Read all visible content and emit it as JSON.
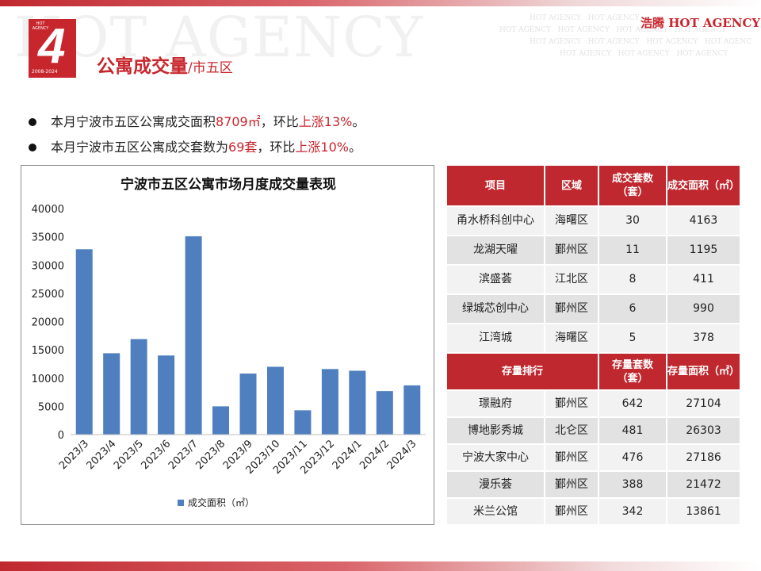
{
  "header": {
    "watermark": "HOT AGENCY",
    "watermark_row": "HOT AGENCY",
    "brand": "浩腾 HOT AGENCY",
    "logo_top": "HOT AGENCY",
    "logo_number": "4",
    "logo_years": "2008-2024"
  },
  "title": {
    "main": "公寓成交量",
    "sub": "/市五区"
  },
  "bullets": [
    {
      "pre": "本月宁波市五区公寓成交面积",
      "v1": "8709㎡",
      "mid": "，环比",
      "v2": "上涨13%",
      "post": "。"
    },
    {
      "pre": "本月宁波市五区公寓成交套数为",
      "v1": "69套",
      "mid": "，环比",
      "v2": "上涨10%",
      "post": "。"
    }
  ],
  "colors": {
    "accent": "#c0282f",
    "bar": "#4f7fbf"
  },
  "chart_data": {
    "type": "bar",
    "title": "宁波市五区公寓市场月度成交量表现",
    "categories": [
      "2023/3",
      "2023/4",
      "2023/5",
      "2023/6",
      "2023/7",
      "2023/8",
      "2023/9",
      "2023/10",
      "2023/11",
      "2023/12",
      "2024/1",
      "2024/2",
      "2024/3"
    ],
    "series": [
      {
        "name": "成交面积（㎡）",
        "values": [
          32800,
          14400,
          16900,
          14000,
          35100,
          5000,
          10800,
          12000,
          4300,
          11600,
          11300,
          7700,
          8709
        ]
      }
    ],
    "ylim": [
      0,
      40000
    ],
    "yticks": [
      "0",
      "5000",
      "10000",
      "15000",
      "20000",
      "25000",
      "30000",
      "35000",
      "40000"
    ],
    "grid": false,
    "legend": "bottom"
  },
  "table": {
    "head1": [
      "项目",
      "区域",
      "成交套数（套）",
      "成交面积（㎡）"
    ],
    "rows1": [
      [
        "甬水桥科创中心",
        "海曙区",
        "30",
        "4163"
      ],
      [
        "龙湖天曜",
        "鄞州区",
        "11",
        "1195"
      ],
      [
        "滨盛荟",
        "江北区",
        "8",
        "411"
      ],
      [
        "绿城芯创中心",
        "鄞州区",
        "6",
        "990"
      ],
      [
        "江湾城",
        "海曙区",
        "5",
        "378"
      ]
    ],
    "head2": [
      "存量排行",
      "存量套数（套）",
      "存量面积（㎡）"
    ],
    "rows2": [
      [
        "璟融府",
        "鄞州区",
        "642",
        "27104"
      ],
      [
        "博地影秀城",
        "北仑区",
        "481",
        "26303"
      ],
      [
        "宁波大家中心",
        "鄞州区",
        "476",
        "27186"
      ],
      [
        "漫乐荟",
        "鄞州区",
        "388",
        "21472"
      ],
      [
        "米兰公馆",
        "鄞州区",
        "342",
        "13861"
      ]
    ]
  }
}
